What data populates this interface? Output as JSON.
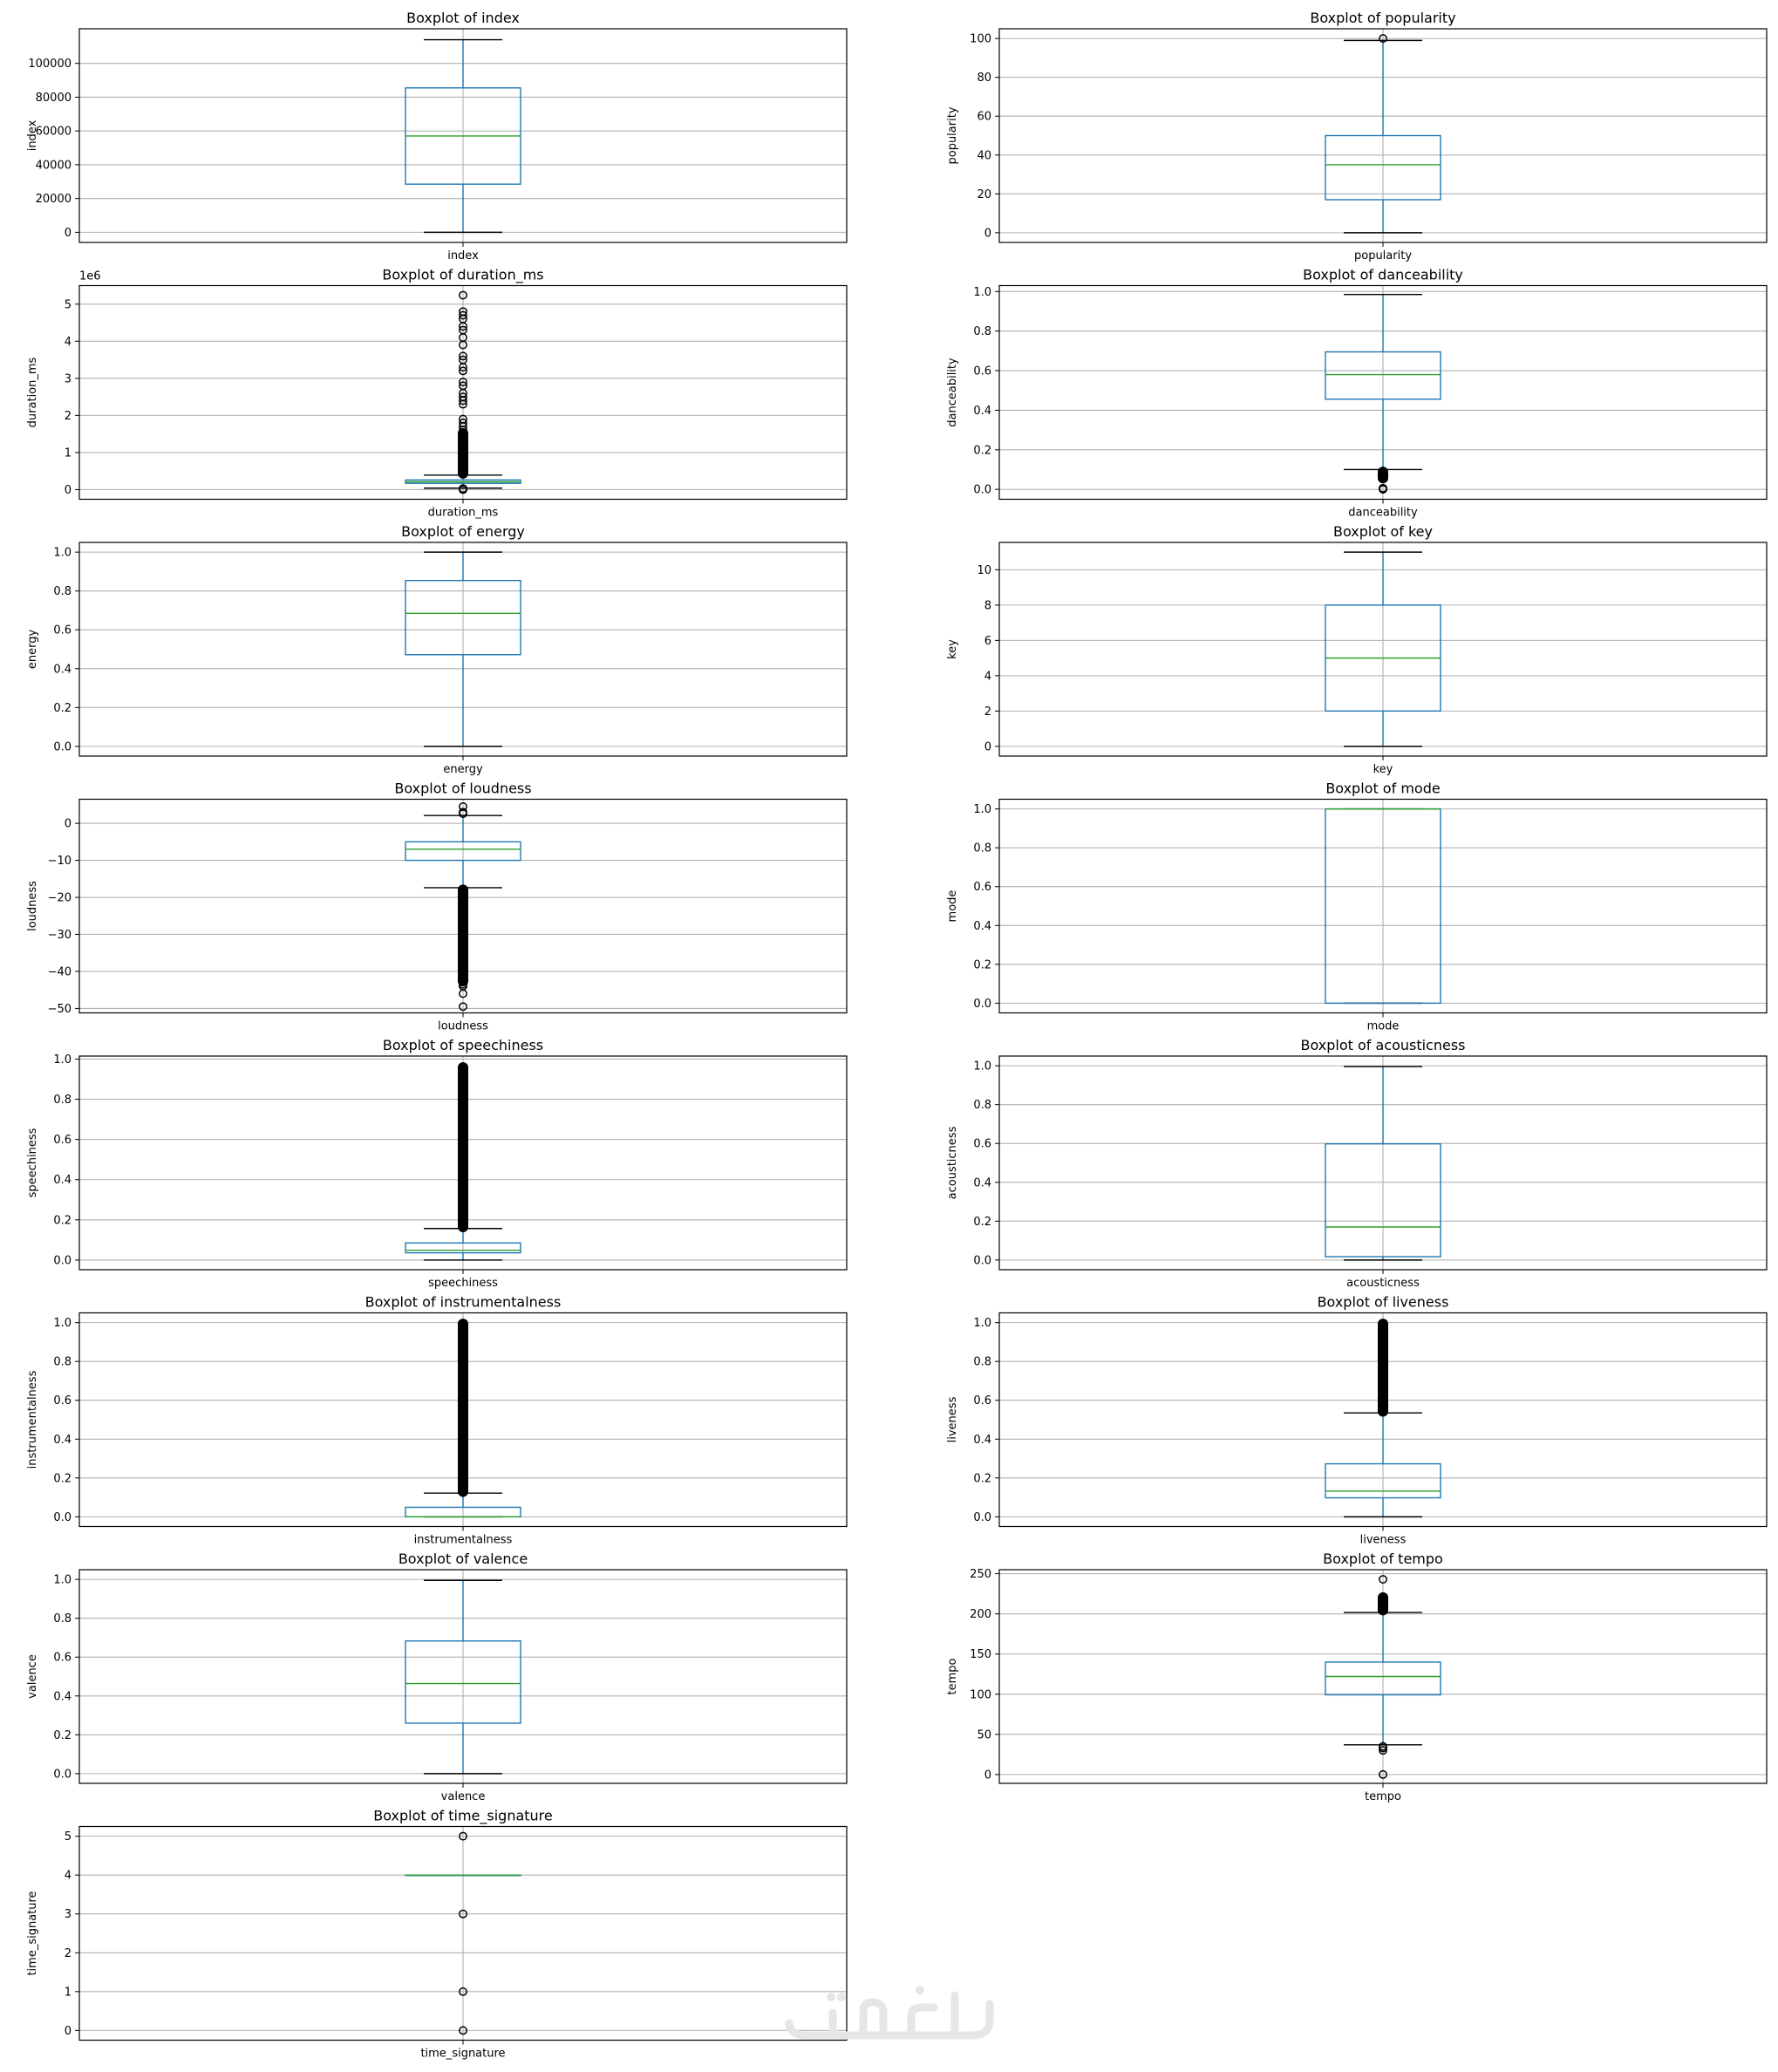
{
  "watermark": {
    "text": "خمسات"
  },
  "chart_data": [
    {
      "type": "boxplot",
      "title": "Boxplot of index",
      "ylabel": "index",
      "xticklabel": "index",
      "ylim": [
        -6000,
        120500
      ],
      "yticks": [
        0,
        20000,
        40000,
        60000,
        80000,
        100000
      ],
      "ytick_labels": [
        "0",
        "20000",
        "40000",
        "60000",
        "80000",
        "100000"
      ],
      "box": {
        "whisker_low": 0,
        "q1": 28500,
        "median": 57000,
        "q3": 85500,
        "whisker_high": 114000
      },
      "outliers": [],
      "outlier_band": null,
      "grid": true
    },
    {
      "type": "boxplot",
      "title": "Boxplot of popularity",
      "ylabel": "popularity",
      "xticklabel": "popularity",
      "ylim": [
        -5,
        105
      ],
      "yticks": [
        0,
        20,
        40,
        60,
        80,
        100
      ],
      "ytick_labels": [
        "0",
        "20",
        "40",
        "60",
        "80",
        "100"
      ],
      "box": {
        "whisker_low": 0,
        "q1": 17,
        "median": 35,
        "q3": 50,
        "whisker_high": 99
      },
      "outliers": [
        100
      ],
      "outlier_band": null,
      "grid": true
    },
    {
      "type": "boxplot",
      "title": "Boxplot of duration_ms",
      "ylabel": "duration_ms",
      "xticklabel": "duration_ms",
      "scale_label": "1e6",
      "ylim": [
        -0.26,
        5.5
      ],
      "yticks": [
        0,
        1,
        2,
        3,
        4,
        5
      ],
      "ytick_labels": [
        "0",
        "1",
        "2",
        "3",
        "4",
        "5"
      ],
      "box": {
        "whisker_low": 0.04,
        "q1": 0.17,
        "median": 0.21,
        "q3": 0.26,
        "whisker_high": 0.39
      },
      "outliers": [
        0.0,
        0.02,
        0.03,
        1.6,
        1.7,
        1.8,
        1.9,
        2.3,
        2.4,
        2.5,
        2.6,
        2.8,
        2.9,
        3.2,
        3.3,
        3.5,
        3.6,
        3.9,
        4.1,
        4.3,
        4.4,
        4.6,
        4.7,
        4.8,
        5.24
      ],
      "outlier_band": [
        0.4,
        1.55
      ],
      "grid": true
    },
    {
      "type": "boxplot",
      "title": "Boxplot of danceability",
      "ylabel": "danceability",
      "xticklabel": "danceability",
      "ylim": [
        -0.05,
        1.03
      ],
      "yticks": [
        0,
        0.2,
        0.4,
        0.6,
        0.8,
        1.0
      ],
      "ytick_labels": [
        "0.0",
        "0.2",
        "0.4",
        "0.6",
        "0.8",
        "1.0"
      ],
      "box": {
        "whisker_low": 0.1,
        "q1": 0.456,
        "median": 0.58,
        "q3": 0.695,
        "whisker_high": 0.985
      },
      "outliers": [
        0.0,
        0.003,
        0.006
      ],
      "outlier_band": [
        0.05,
        0.095
      ],
      "grid": true
    },
    {
      "type": "boxplot",
      "title": "Boxplot of energy",
      "ylabel": "energy",
      "xticklabel": "energy",
      "ylim": [
        -0.05,
        1.05
      ],
      "yticks": [
        0,
        0.2,
        0.4,
        0.6,
        0.8,
        1.0
      ],
      "ytick_labels": [
        "0.0",
        "0.2",
        "0.4",
        "0.6",
        "0.8",
        "1.0"
      ],
      "box": {
        "whisker_low": 0.0,
        "q1": 0.472,
        "median": 0.685,
        "q3": 0.854,
        "whisker_high": 1.0
      },
      "outliers": [],
      "outlier_band": null,
      "grid": true
    },
    {
      "type": "boxplot",
      "title": "Boxplot of key",
      "ylabel": "key",
      "xticklabel": "key",
      "ylim": [
        -0.55,
        11.55
      ],
      "yticks": [
        0,
        2,
        4,
        6,
        8,
        10
      ],
      "ytick_labels": [
        "0",
        "2",
        "4",
        "6",
        "8",
        "10"
      ],
      "box": {
        "whisker_low": 0,
        "q1": 2,
        "median": 5,
        "q3": 8,
        "whisker_high": 11
      },
      "outliers": [],
      "outlier_band": null,
      "grid": true
    },
    {
      "type": "boxplot",
      "title": "Boxplot of loudness",
      "ylabel": "loudness",
      "xticklabel": "loudness",
      "ylim": [
        -51.2,
        6.5
      ],
      "yticks": [
        -50,
        -40,
        -30,
        -20,
        -10,
        0
      ],
      "ytick_labels": [
        "−50",
        "−40",
        "−30",
        "−20",
        "−10",
        "0"
      ],
      "box": {
        "whisker_low": -17.4,
        "q1": -10.0,
        "median": -7.0,
        "q3": -5.0,
        "whisker_high": 2.1
      },
      "outliers": [
        4.5,
        3.0,
        2.6,
        -43.5,
        -44.0,
        -46.0,
        -49.5
      ],
      "outlier_band": [
        -43.0,
        -17.6
      ],
      "grid": true
    },
    {
      "type": "boxplot",
      "title": "Boxplot of mode",
      "ylabel": "mode",
      "xticklabel": "mode",
      "ylim": [
        -0.05,
        1.05
      ],
      "yticks": [
        0,
        0.2,
        0.4,
        0.6,
        0.8,
        1.0
      ],
      "ytick_labels": [
        "0.0",
        "0.2",
        "0.4",
        "0.6",
        "0.8",
        "1.0"
      ],
      "box": {
        "whisker_low": 0,
        "q1": 0,
        "median": 1,
        "q3": 1,
        "whisker_high": 1
      },
      "outliers": [],
      "outlier_band": null,
      "grid": true
    },
    {
      "type": "boxplot",
      "title": "Boxplot of speechiness",
      "ylabel": "speechiness",
      "xticklabel": "speechiness",
      "ylim": [
        -0.048,
        1.015
      ],
      "yticks": [
        0,
        0.2,
        0.4,
        0.6,
        0.8,
        1.0
      ],
      "ytick_labels": [
        "0.0",
        "0.2",
        "0.4",
        "0.6",
        "0.8",
        "1.0"
      ],
      "box": {
        "whisker_low": 0.0,
        "q1": 0.036,
        "median": 0.049,
        "q3": 0.085,
        "whisker_high": 0.157
      },
      "outliers": [],
      "outlier_band": [
        0.158,
        0.965
      ],
      "grid": true
    },
    {
      "type": "boxplot",
      "title": "Boxplot of acousticness",
      "ylabel": "acousticness",
      "xticklabel": "acousticness",
      "ylim": [
        -0.05,
        1.05
      ],
      "yticks": [
        0,
        0.2,
        0.4,
        0.6,
        0.8,
        1.0
      ],
      "ytick_labels": [
        "0.0",
        "0.2",
        "0.4",
        "0.6",
        "0.8",
        "1.0"
      ],
      "box": {
        "whisker_low": 0.0,
        "q1": 0.017,
        "median": 0.17,
        "q3": 0.598,
        "whisker_high": 0.996
      },
      "outliers": [],
      "outlier_band": null,
      "grid": true
    },
    {
      "type": "boxplot",
      "title": "Boxplot of instrumentalness",
      "ylabel": "instrumentalness",
      "xticklabel": "instrumentalness",
      "ylim": [
        -0.05,
        1.05
      ],
      "yticks": [
        0,
        0.2,
        0.4,
        0.6,
        0.8,
        1.0
      ],
      "ytick_labels": [
        "0.0",
        "0.2",
        "0.4",
        "0.6",
        "0.8",
        "1.0"
      ],
      "box": {
        "whisker_low": 0.0,
        "q1": 0.0,
        "median": 4e-05,
        "q3": 0.049,
        "whisker_high": 0.122
      },
      "outliers": [],
      "outlier_band": [
        0.123,
        1.0
      ],
      "grid": true
    },
    {
      "type": "boxplot",
      "title": "Boxplot of liveness",
      "ylabel": "liveness",
      "xticklabel": "liveness",
      "ylim": [
        -0.05,
        1.05
      ],
      "yticks": [
        0,
        0.2,
        0.4,
        0.6,
        0.8,
        1.0
      ],
      "ytick_labels": [
        "0.0",
        "0.2",
        "0.4",
        "0.6",
        "0.8",
        "1.0"
      ],
      "box": {
        "whisker_low": 0.0,
        "q1": 0.098,
        "median": 0.132,
        "q3": 0.273,
        "whisker_high": 0.535
      },
      "outliers": [],
      "outlier_band": [
        0.536,
        1.0
      ],
      "grid": true
    },
    {
      "type": "boxplot",
      "title": "Boxplot of valence",
      "ylabel": "valence",
      "xticklabel": "valence",
      "ylim": [
        -0.05,
        1.05
      ],
      "yticks": [
        0,
        0.2,
        0.4,
        0.6,
        0.8,
        1.0
      ],
      "ytick_labels": [
        "0.0",
        "0.2",
        "0.4",
        "0.6",
        "0.8",
        "1.0"
      ],
      "box": {
        "whisker_low": 0.0,
        "q1": 0.26,
        "median": 0.464,
        "q3": 0.683,
        "whisker_high": 0.995
      },
      "outliers": [],
      "outlier_band": null,
      "grid": true
    },
    {
      "type": "boxplot",
      "title": "Boxplot of tempo",
      "ylabel": "tempo",
      "xticklabel": "tempo",
      "ylim": [
        -11,
        255
      ],
      "yticks": [
        0,
        50,
        100,
        150,
        200,
        250
      ],
      "ytick_labels": [
        "0",
        "50",
        "100",
        "150",
        "200",
        "250"
      ],
      "box": {
        "whisker_low": 37,
        "q1": 99.2,
        "median": 122,
        "q3": 140,
        "whisker_high": 201.7
      },
      "outliers": [
        243,
        0,
        30,
        33,
        35
      ],
      "outlier_band": [
        203,
        222
      ],
      "grid": true
    },
    {
      "type": "boxplot",
      "title": "Boxplot of time_signature",
      "ylabel": "time_signature",
      "xticklabel": "time_signature",
      "ylim": [
        -0.25,
        5.25
      ],
      "yticks": [
        0,
        1,
        2,
        3,
        4,
        5
      ],
      "ytick_labels": [
        "0",
        "1",
        "2",
        "3",
        "4",
        "5"
      ],
      "box": {
        "whisker_low": 4,
        "q1": 4,
        "median": 4,
        "q3": 4,
        "whisker_high": 4
      },
      "outliers": [
        0,
        1,
        3,
        5
      ],
      "outlier_band": null,
      "grid": true
    }
  ]
}
